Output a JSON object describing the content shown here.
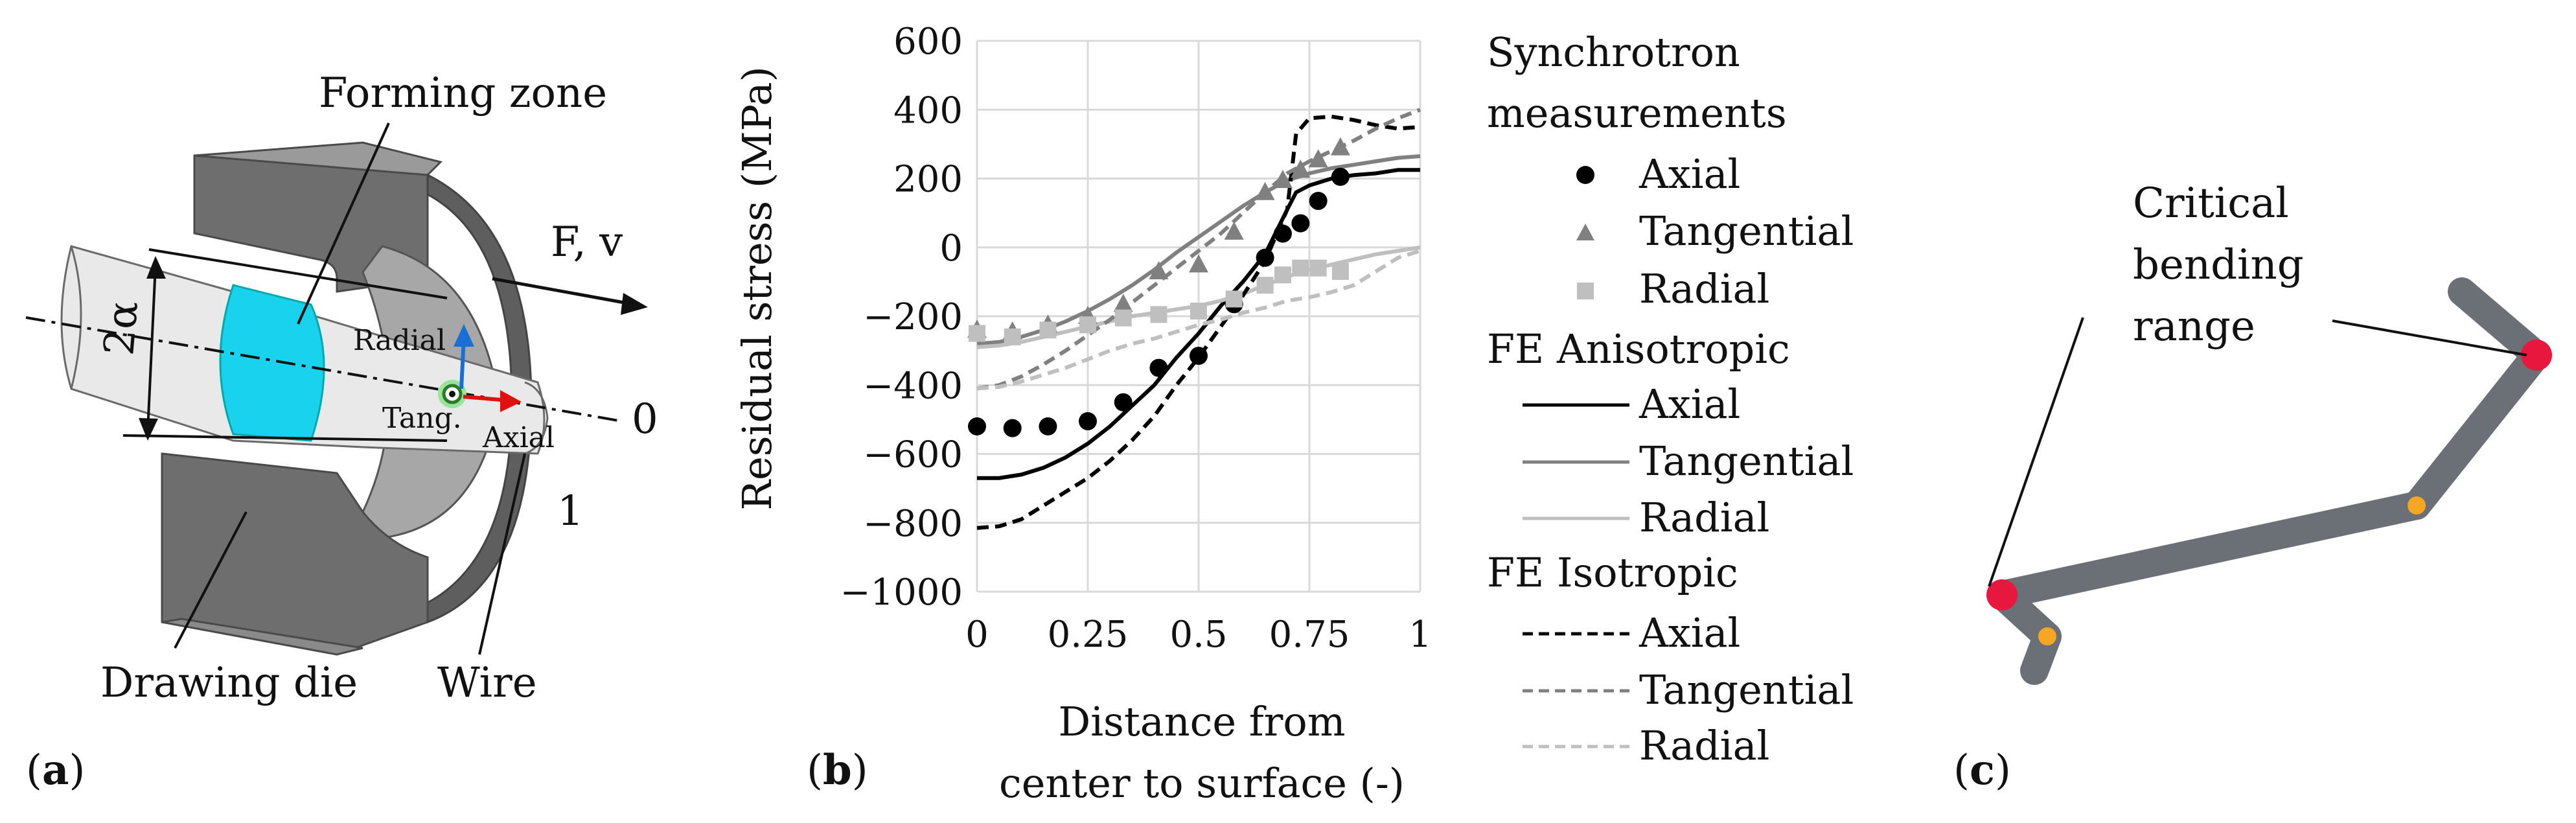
{
  "panels": {
    "a": {
      "label": "(a)",
      "forming_zone": "Forming zone",
      "force": "F, v",
      "angle": "2α",
      "radial": "Radial",
      "tang": "Tang.",
      "axial": "Axial",
      "zero": "0",
      "one": "1",
      "drawing_die": "Drawing die",
      "wire": "Wire"
    },
    "b": {
      "label": "(b)"
    },
    "c": {
      "label": "(c)",
      "critical": [
        "Critical",
        "bending",
        "range"
      ]
    }
  },
  "legend": {
    "group1_title": [
      "Synchrotron",
      "measurements"
    ],
    "group2_title": "FE Anisotropic",
    "group3_title": "FE Isotropic",
    "entries": [
      "Axial",
      "Tangential",
      "Radial"
    ]
  },
  "colors": {
    "axial": "#000000",
    "tangential": "#808080",
    "radial": "#bfbfbf",
    "zone": "#19d3ee",
    "die": "#6e6e6e",
    "wire3d": "#6a7076",
    "critical": "#e8173d",
    "minor": "#f5a623"
  },
  "chart_data": {
    "type": "line",
    "title": "",
    "xlabel": [
      "Distance from",
      "center to surface (-)"
    ],
    "ylabel": "Residual stress (MPa)",
    "xlim": [
      0,
      1
    ],
    "ylim": [
      -1000,
      600
    ],
    "xticks": [
      0,
      0.25,
      0.5,
      0.75,
      1
    ],
    "xtick_labels": [
      "0",
      "0.25",
      "0.5",
      "0.75",
      "1"
    ],
    "yticks": [
      -1000,
      -800,
      -600,
      -400,
      -200,
      0,
      200,
      400,
      600
    ],
    "ytick_labels": [
      "−1000",
      "−800",
      "−600",
      "−400",
      "−200",
      "0",
      "200",
      "400",
      "600"
    ],
    "grid": true,
    "scatter": [
      {
        "name": "Synchrotron Axial",
        "marker": "circle",
        "x": [
          0,
          0.08,
          0.16,
          0.25,
          0.33,
          0.41,
          0.5,
          0.58,
          0.65,
          0.69,
          0.73,
          0.77,
          0.82
        ],
        "y": [
          -520,
          -525,
          -520,
          -505,
          -450,
          -350,
          -315,
          -165,
          -30,
          40,
          70,
          135,
          205
        ]
      },
      {
        "name": "Synchrotron Tangential",
        "marker": "triangle",
        "x": [
          0,
          0.08,
          0.16,
          0.25,
          0.33,
          0.41,
          0.5,
          0.58,
          0.65,
          0.69,
          0.73,
          0.77,
          0.82
        ],
        "y": [
          -240,
          -245,
          -225,
          -200,
          -165,
          -70,
          -50,
          45,
          160,
          195,
          225,
          255,
          290
        ]
      },
      {
        "name": "Synchrotron Radial",
        "marker": "square",
        "x": [
          0,
          0.08,
          0.16,
          0.25,
          0.33,
          0.41,
          0.5,
          0.58,
          0.65,
          0.69,
          0.73,
          0.77,
          0.82
        ],
        "y": [
          -250,
          -260,
          -240,
          -225,
          -205,
          -195,
          -185,
          -150,
          -110,
          -80,
          -60,
          -60,
          -70
        ]
      }
    ],
    "series": [
      {
        "name": "FE Anisotropic Axial",
        "dash": "solid",
        "x": [
          0,
          0.05,
          0.1,
          0.15,
          0.2,
          0.25,
          0.3,
          0.35,
          0.4,
          0.45,
          0.5,
          0.55,
          0.6,
          0.65,
          0.7,
          0.72,
          0.75,
          0.8,
          0.85,
          0.9,
          0.95,
          1
        ],
        "y": [
          -670,
          -670,
          -660,
          -640,
          -610,
          -570,
          -520,
          -460,
          -400,
          -320,
          -250,
          -170,
          -100,
          -20,
          110,
          160,
          180,
          200,
          210,
          215,
          225,
          225
        ]
      },
      {
        "name": "FE Anisotropic Tangential",
        "dash": "solid",
        "x": [
          0,
          0.05,
          0.1,
          0.15,
          0.2,
          0.25,
          0.3,
          0.35,
          0.4,
          0.45,
          0.5,
          0.55,
          0.6,
          0.65,
          0.7,
          0.75,
          0.8,
          0.85,
          0.9,
          0.95,
          1
        ],
        "y": [
          -280,
          -275,
          -260,
          -240,
          -215,
          -185,
          -150,
          -110,
          -65,
          -15,
          30,
          75,
          120,
          160,
          195,
          215,
          230,
          240,
          250,
          260,
          265
        ]
      },
      {
        "name": "FE Anisotropic Radial",
        "dash": "solid",
        "x": [
          0,
          0.05,
          0.1,
          0.15,
          0.2,
          0.25,
          0.3,
          0.35,
          0.4,
          0.45,
          0.5,
          0.55,
          0.6,
          0.65,
          0.7,
          0.75,
          0.8,
          0.85,
          0.9,
          0.95,
          1
        ],
        "y": [
          -290,
          -285,
          -275,
          -260,
          -245,
          -230,
          -215,
          -200,
          -190,
          -180,
          -170,
          -155,
          -135,
          -110,
          -85,
          -65,
          -50,
          -35,
          -20,
          -10,
          0
        ]
      },
      {
        "name": "FE Isotropic Axial",
        "dash": "dash",
        "x": [
          0,
          0.05,
          0.1,
          0.15,
          0.2,
          0.25,
          0.3,
          0.35,
          0.4,
          0.45,
          0.5,
          0.55,
          0.6,
          0.65,
          0.7,
          0.72,
          0.75,
          0.8,
          0.85,
          0.9,
          0.95,
          1
        ],
        "y": [
          -815,
          -810,
          -790,
          -750,
          -710,
          -670,
          -620,
          -560,
          -490,
          -400,
          -320,
          -230,
          -140,
          -40,
          110,
          330,
          375,
          380,
          370,
          355,
          345,
          350
        ]
      },
      {
        "name": "FE Isotropic Tangential",
        "dash": "dash",
        "x": [
          0,
          0.05,
          0.1,
          0.15,
          0.2,
          0.25,
          0.3,
          0.35,
          0.4,
          0.45,
          0.5,
          0.55,
          0.6,
          0.65,
          0.7,
          0.75,
          0.8,
          0.85,
          0.9,
          0.95,
          1
        ],
        "y": [
          -410,
          -400,
          -375,
          -340,
          -300,
          -255,
          -210,
          -160,
          -110,
          -60,
          -10,
          40,
          100,
          160,
          215,
          250,
          280,
          310,
          345,
          375,
          400
        ]
      },
      {
        "name": "FE Isotropic Radial",
        "dash": "dash",
        "x": [
          0,
          0.05,
          0.1,
          0.15,
          0.2,
          0.25,
          0.3,
          0.35,
          0.4,
          0.45,
          0.5,
          0.55,
          0.6,
          0.65,
          0.7,
          0.75,
          0.8,
          0.85,
          0.9,
          0.95,
          1
        ],
        "y": [
          -410,
          -405,
          -390,
          -370,
          -350,
          -325,
          -300,
          -280,
          -265,
          -245,
          -225,
          -210,
          -190,
          -175,
          -155,
          -145,
          -130,
          -110,
          -70,
          -30,
          -10
        ]
      }
    ]
  }
}
